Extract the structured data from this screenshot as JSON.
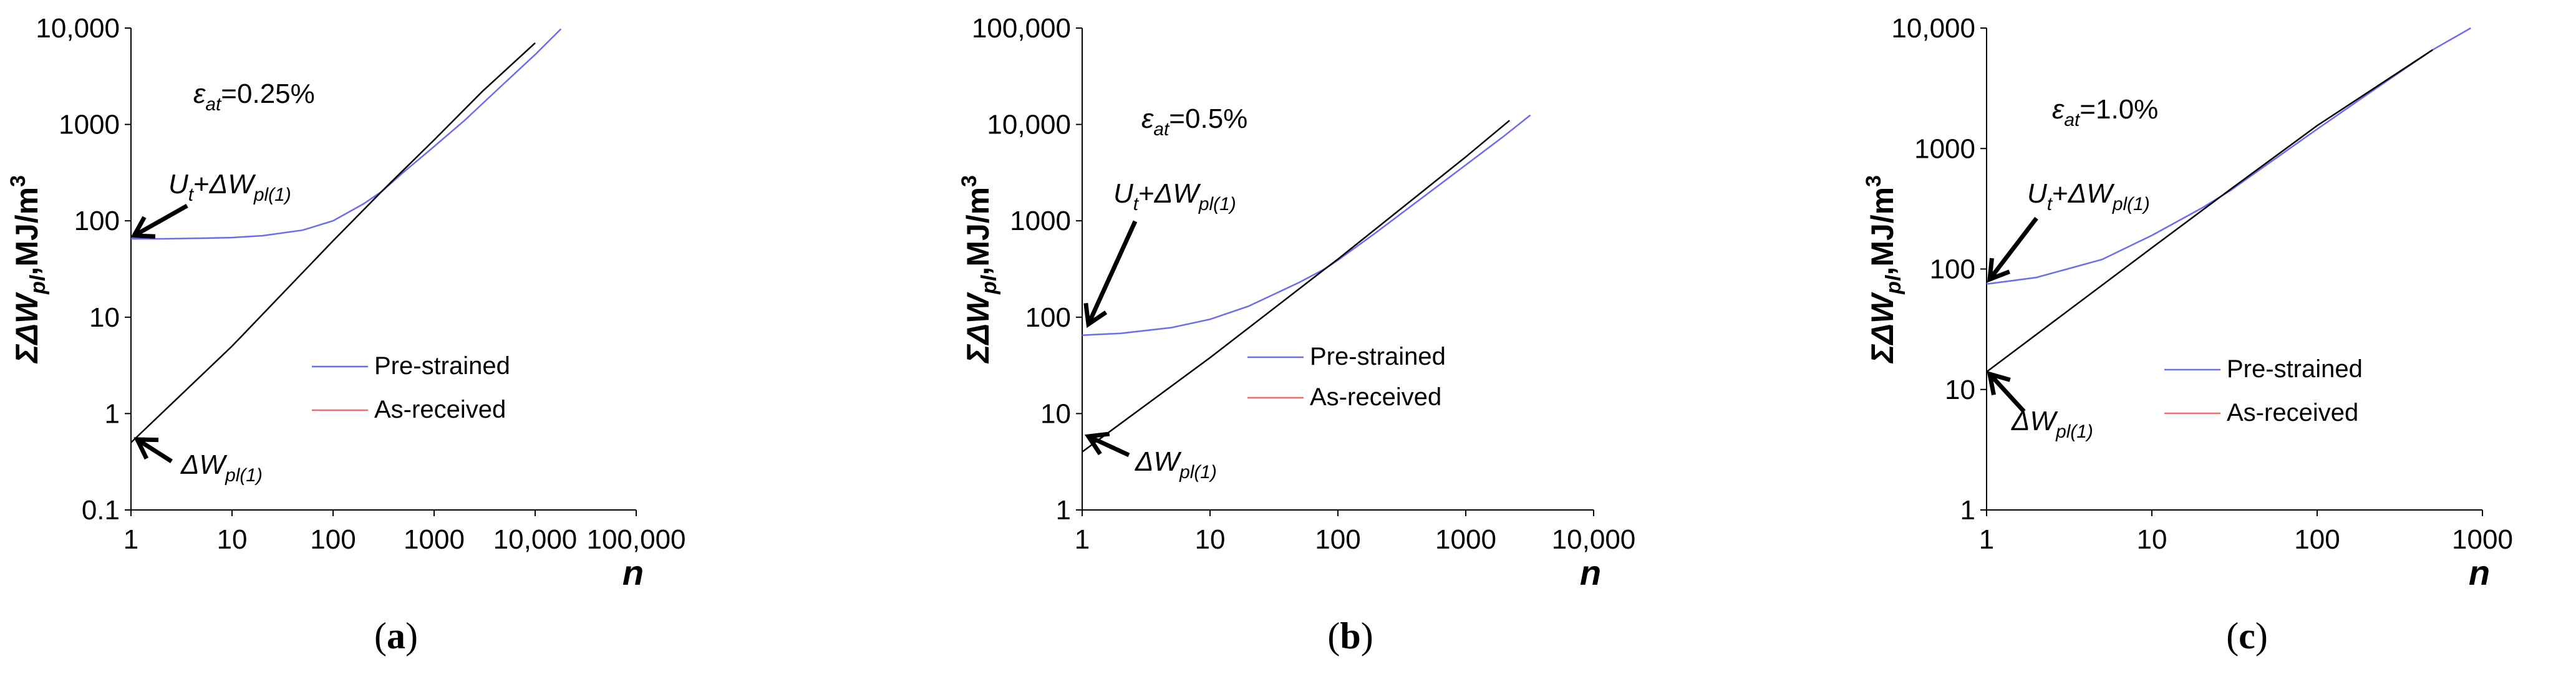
{
  "chart_data": [
    {
      "type": "line",
      "xscale": "log",
      "yscale": "log",
      "xlabel": "n",
      "ylabel": "ΣΔW_pl,MJ/m³",
      "xlim": [
        1,
        100000
      ],
      "ylim": [
        0.1,
        10000
      ],
      "x_ticks": [
        1,
        10,
        100,
        1000,
        10000,
        100000
      ],
      "x_tick_labels": [
        "1",
        "10",
        "100",
        "1000",
        "10,000",
        "100,000"
      ],
      "y_ticks": [
        0.1,
        1,
        10,
        100,
        1000,
        10000
      ],
      "y_tick_labels": [
        "0.1",
        "1",
        "10",
        "100",
        "1000",
        "10,000"
      ],
      "strain_label": "ε_at=0.25%",
      "annotation_top": "U_t+ΔW_pl(1)",
      "annotation_bottom": "ΔW_pl(1)",
      "legend": [
        "Pre-strained",
        "As-received"
      ],
      "panel_label": "(a)",
      "series": [
        {
          "name": "Pre-strained",
          "color": "#6b6bf0",
          "x": [
            1,
            2,
            5,
            10,
            20,
            50,
            100,
            200,
            300,
            500,
            1000,
            2000,
            5000,
            10000,
            18000
          ],
          "y": [
            65,
            65,
            66,
            67,
            70,
            80,
            100,
            150,
            200,
            320,
            590,
            1100,
            2700,
            5300,
            9800
          ]
        },
        {
          "name": "As-received",
          "color": "#000000",
          "x": [
            1,
            10,
            100,
            300,
            1000,
            3000,
            10000
          ],
          "y": [
            0.5,
            5,
            62,
            200,
            690,
            2200,
            7000
          ]
        }
      ]
    },
    {
      "type": "line",
      "xscale": "log",
      "yscale": "log",
      "xlabel": "n",
      "ylabel": "ΣΔW_pl,MJ/m³",
      "xlim": [
        1,
        10000
      ],
      "ylim": [
        1,
        100000
      ],
      "x_ticks": [
        1,
        10,
        100,
        1000,
        10000
      ],
      "x_tick_labels": [
        "1",
        "10",
        "100",
        "1000",
        "10,000"
      ],
      "y_ticks": [
        1,
        10,
        100,
        1000,
        10000,
        100000
      ],
      "y_tick_labels": [
        "1",
        "10",
        "100",
        "1000",
        "10,000",
        "100,000"
      ],
      "strain_label": "ε_at=0.5%",
      "annotation_top": "U_t+ΔW_pl(1)",
      "annotation_bottom": "ΔW_pl(1)",
      "legend": [
        "Pre-strained",
        "As-received"
      ],
      "panel_label": "(b)",
      "series": [
        {
          "name": "Pre-strained",
          "color": "#6b6bf0",
          "x": [
            1,
            2,
            5,
            10,
            20,
            50,
            80,
            100,
            200,
            500,
            1000,
            2000,
            3200
          ],
          "y": [
            65,
            68,
            78,
            95,
            130,
            230,
            320,
            390,
            760,
            1900,
            3800,
            7600,
            12500
          ]
        },
        {
          "name": "As-received",
          "color": "#000000",
          "x": [
            1,
            10,
            80,
            100,
            1000,
            2200
          ],
          "y": [
            4,
            38,
            320,
            400,
            4600,
            11000
          ]
        }
      ]
    },
    {
      "type": "line",
      "xscale": "log",
      "yscale": "log",
      "xlabel": "n",
      "ylabel": "ΣΔW_pl,MJ/m³",
      "xlim": [
        1,
        1000
      ],
      "ylim": [
        1,
        10000
      ],
      "x_ticks": [
        1,
        10,
        100,
        1000
      ],
      "x_tick_labels": [
        "1",
        "10",
        "100",
        "1000"
      ],
      "y_ticks": [
        1,
        10,
        100,
        1000,
        10000
      ],
      "y_tick_labels": [
        "1",
        "10",
        "100",
        "1000",
        "10,000"
      ],
      "strain_label": "ε_at=1.0%",
      "annotation_top": "U_t+ΔW_pl(1)",
      "annotation_bottom": "ΔW_pl(1)",
      "legend": [
        "Pre-strained",
        "As-received"
      ],
      "panel_label": "(c)",
      "series": [
        {
          "name": "Pre-strained",
          "color": "#6b6bf0",
          "x": [
            1,
            2,
            5,
            10,
            20,
            30,
            50,
            100,
            200,
            500,
            850
          ],
          "y": [
            75,
            85,
            120,
            190,
            320,
            450,
            740,
            1450,
            2800,
            6600,
            10000
          ]
        },
        {
          "name": "As-received",
          "color": "#000000",
          "x": [
            1,
            10,
            30,
            100,
            500
          ],
          "y": [
            14,
            150,
            460,
            1550,
            6600
          ]
        }
      ]
    }
  ]
}
